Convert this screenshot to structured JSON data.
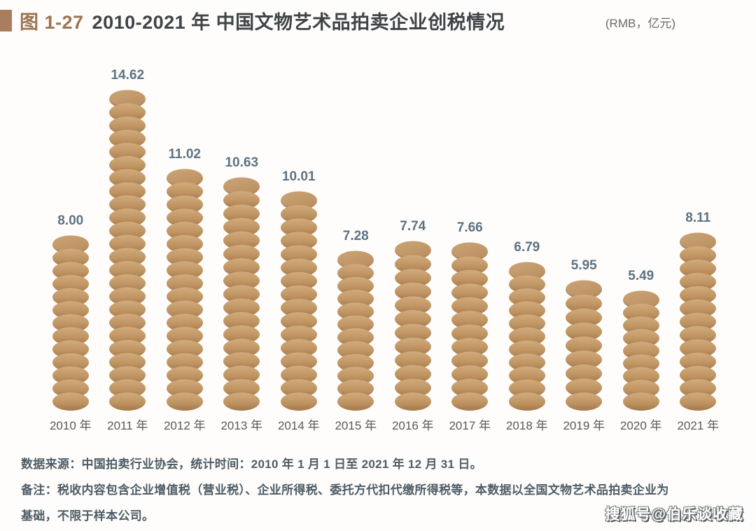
{
  "header": {
    "figure_label": "图 1-27",
    "title": "2010-2021 年 中国文物艺术品拍卖企业创税情况",
    "unit": "(RMB，亿元)"
  },
  "chart_data": {
    "type": "bar",
    "style": "coin-stack-pictogram",
    "title": "2010-2021 年 中国文物艺术品拍卖企业创税情况",
    "unit_label": "RMB，亿元",
    "categories": [
      "2010 年",
      "2011 年",
      "2012 年",
      "2013 年",
      "2014 年",
      "2015 年",
      "2016 年",
      "2017 年",
      "2018 年",
      "2019 年",
      "2020 年",
      "2021 年"
    ],
    "values": [
      8.0,
      14.62,
      11.02,
      10.63,
      10.01,
      7.28,
      7.74,
      7.66,
      6.79,
      5.95,
      5.49,
      8.11
    ],
    "value_labels": [
      "8.00",
      "14.62",
      "11.02",
      "10.63",
      "10.01",
      "7.28",
      "7.74",
      "7.66",
      "6.79",
      "5.95",
      "5.49",
      "8.11"
    ],
    "xlabel": "",
    "ylabel": "",
    "ylim": [
      0,
      15
    ],
    "grid": false,
    "legend": false,
    "colors": {
      "coin_light": "#d2ab7c",
      "coin_dark": "#a3784b",
      "coin_face_light": "#cba577",
      "coin_face_dark": "#bb9162",
      "value_label": "#5c7282",
      "axis_label": "#58595b"
    }
  },
  "footer": {
    "source_line": "数据来源：中国拍卖行业协会，统计时间：2010 年 1 月 1 日至 2021 年 12 月 31 日。",
    "note_line1": "备注：税收内容包含企业增值税（营业税）、企业所得税、委托方代扣代缴所得税等，本数据以全国文物艺术品拍卖企业为",
    "note_line2": "基础，不限于样本公司。"
  },
  "watermark": {
    "text": "搜狐号@伯乐谈收藏"
  },
  "colors": {
    "accent_brown": "#9c7452",
    "marker_brown": "#a87e5e",
    "title_text": "#3f4448",
    "footer_text": "#4d5c66",
    "background": "#fefdfb"
  }
}
